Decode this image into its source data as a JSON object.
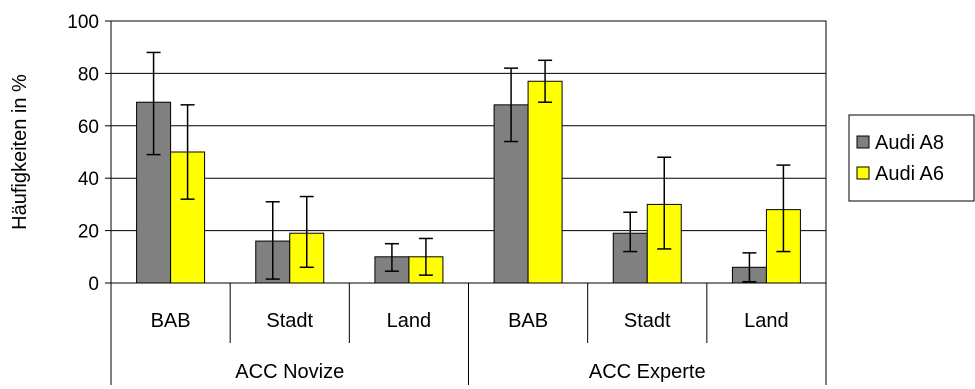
{
  "chart_data": {
    "type": "bar",
    "title": "",
    "ylabel": "Häufigkeiten in %",
    "xlabel": "",
    "ylim": [
      0,
      100
    ],
    "yticks": [
      0,
      20,
      40,
      60,
      80,
      100
    ],
    "grid": "horizontal",
    "legend_position": "right",
    "groups": [
      {
        "label": "ACC Novize",
        "categories": [
          "BAB",
          "Stadt",
          "Land"
        ]
      },
      {
        "label": "ACC Experte",
        "categories": [
          "BAB",
          "Stadt",
          "Land"
        ]
      }
    ],
    "series": [
      {
        "name": "Audi A8",
        "color": "#808080",
        "values": [
          69,
          16,
          10,
          68,
          19,
          6
        ],
        "err_low": [
          49,
          1.5,
          4.5,
          54,
          12,
          0.5
        ],
        "err_high": [
          88,
          31,
          15,
          82,
          27,
          11.5
        ]
      },
      {
        "name": "Audi A6",
        "color": "#ffff00",
        "values": [
          50,
          19,
          10,
          77,
          30,
          28
        ],
        "err_low": [
          32,
          6,
          3,
          69,
          13,
          12
        ],
        "err_high": [
          68,
          33,
          17,
          85,
          48,
          45
        ]
      }
    ]
  }
}
